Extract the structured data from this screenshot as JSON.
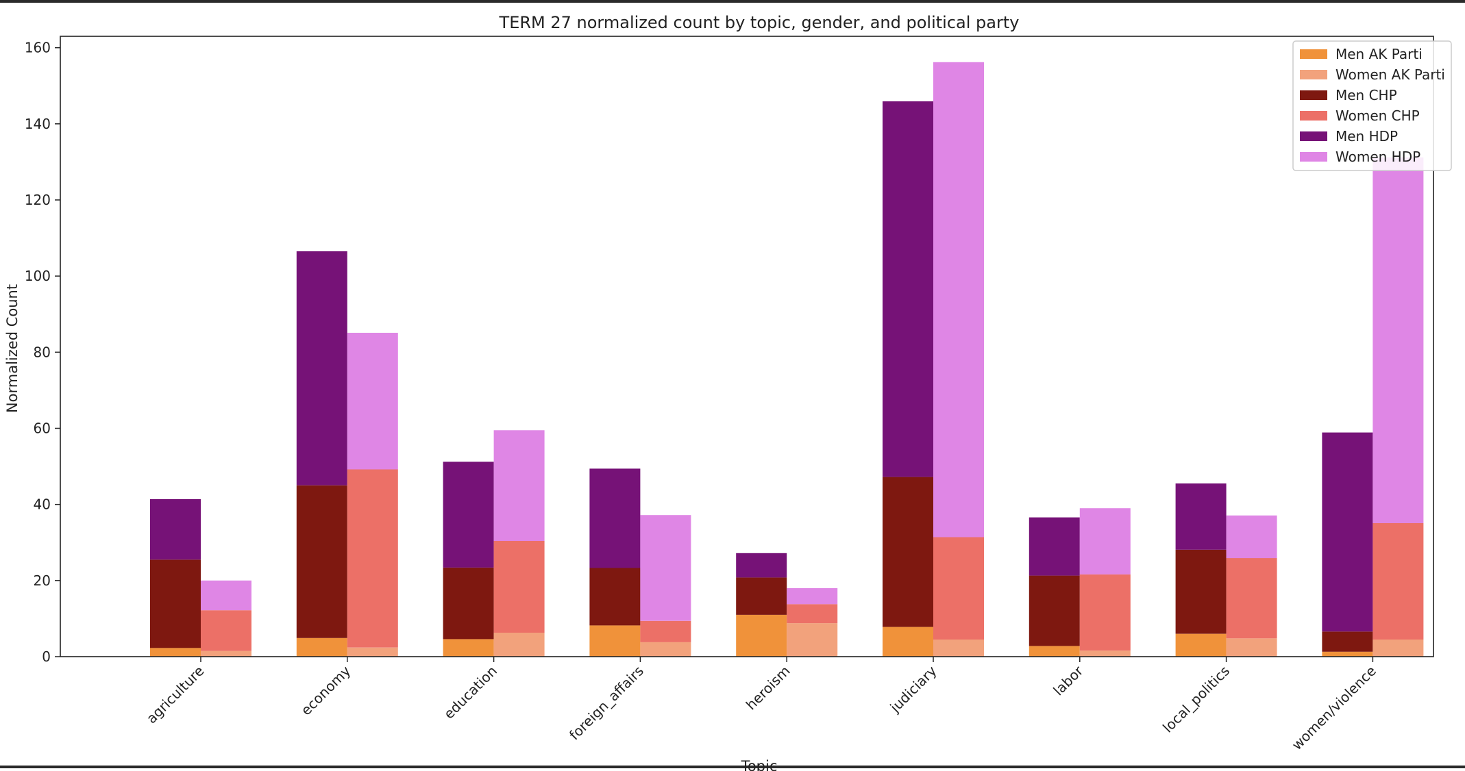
{
  "chart_data": {
    "type": "bar",
    "stacked": true,
    "grouped": true,
    "title": "TERM 27 normalized count by topic, gender, and political party",
    "xlabel": "Topic",
    "ylabel": "Normalized Count",
    "ylim": [
      0,
      163
    ],
    "yticks": [
      0,
      20,
      40,
      60,
      80,
      100,
      120,
      140,
      160
    ],
    "grid": false,
    "legend_position": "top-right",
    "categories": [
      "agriculture",
      "economy",
      "education",
      "foreign_affairs",
      "heroism",
      "judiciary",
      "labor",
      "local_politics",
      "women/violence"
    ],
    "groups": [
      {
        "name": "Men",
        "stack": [
          {
            "name": "Men AK Parti",
            "color": "#f0923a",
            "values": [
              2.3,
              4.9,
              4.6,
              8.2,
              11.0,
              7.8,
              2.8,
              6.0,
              1.3
            ]
          },
          {
            "name": "Men CHP",
            "color": "#7e1810",
            "values": [
              23.2,
              40.1,
              18.8,
              15.1,
              9.8,
              39.4,
              18.5,
              22.1,
              5.3
            ]
          },
          {
            "name": "Men HDP",
            "color": "#761277",
            "values": [
              15.9,
              61.5,
              27.8,
              26.1,
              6.4,
              98.7,
              15.3,
              17.4,
              52.3
            ]
          }
        ]
      },
      {
        "name": "Women",
        "stack": [
          {
            "name": "Women AK Parti",
            "color": "#f2a27c",
            "values": [
              1.5,
              2.4,
              6.3,
              3.8,
              8.8,
              4.5,
              1.6,
              4.8,
              4.5
            ]
          },
          {
            "name": "Women CHP",
            "color": "#ec7067",
            "values": [
              10.7,
              46.8,
              24.1,
              5.6,
              5.0,
              26.9,
              20.0,
              21.1,
              30.6
            ]
          },
          {
            "name": "Women HDP",
            "color": "#df86e5",
            "values": [
              7.8,
              35.9,
              29.1,
              27.8,
              4.2,
              124.8,
              17.4,
              11.2,
              96.1
            ]
          }
        ]
      }
    ],
    "legend": [
      "Men AK Parti",
      "Women AK Parti",
      "Men CHP",
      "Women CHP",
      "Men HDP",
      "Women HDP"
    ]
  }
}
